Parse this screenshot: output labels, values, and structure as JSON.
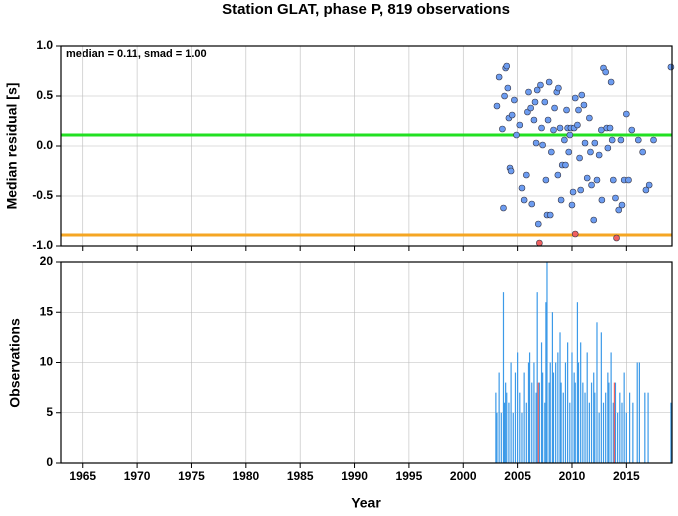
{
  "chart_data": [
    {
      "type": "scatter",
      "title": "Station GLAT, phase P, 819 observations",
      "ylabel": "Median residual [s]",
      "annotation": "median = 0.11, smad = 1.00",
      "xlim": [
        1963,
        2019.2
      ],
      "xticks": [
        1965,
        1970,
        1975,
        1980,
        1985,
        1990,
        1995,
        2000,
        2005,
        2010,
        2015
      ],
      "ylim": [
        -1,
        1
      ],
      "yticks": [
        {
          "value": -1,
          "label": "-1.0"
        },
        -0.5,
        {
          "value": 0,
          "label": "0.0"
        },
        0.5,
        {
          "value": 1,
          "label": "1.0"
        }
      ],
      "grid": true,
      "hlines": [
        {
          "value": 0.11,
          "color": "#22e022"
        },
        {
          "value": -0.89,
          "color": "#f5a623"
        }
      ],
      "series": [
        {
          "color": "#6c9cf0",
          "x": [
            2003.1,
            2003.3,
            2003.6,
            2003.7,
            2003.8,
            2003.9,
            2004.0,
            2004.1,
            2004.2,
            2004.3,
            2004.4,
            2004.5,
            2004.7,
            2004.9,
            2005.2,
            2005.4,
            2005.6,
            2005.8,
            2005.9,
            2006.0,
            2006.2,
            2006.3,
            2006.5,
            2006.6,
            2006.7,
            2006.8,
            2006.9,
            2007.1,
            2007.2,
            2007.3,
            2007.5,
            2007.6,
            2007.7,
            2007.8,
            2007.9,
            2008.0,
            2008.1,
            2008.3,
            2008.4,
            2008.6,
            2008.7,
            2008.75,
            2008.9,
            2009.0,
            2009.1,
            2009.3,
            2009.4,
            2009.5,
            2009.6,
            2009.7,
            2009.8,
            2009.9,
            2010.0,
            2010.1,
            2010.2,
            2010.3,
            2010.5,
            2010.6,
            2010.7,
            2010.8,
            2010.9,
            2011.1,
            2011.2,
            2011.4,
            2011.6,
            2011.7,
            2011.8,
            2012.0,
            2012.1,
            2012.3,
            2012.5,
            2012.7,
            2012.75,
            2012.9,
            2013.1,
            2013.2,
            2013.3,
            2013.5,
            2013.6,
            2013.7,
            2013.8,
            2014.0,
            2014.3,
            2014.5,
            2014.6,
            2014.8,
            2015.0,
            2015.2,
            2015.5,
            2016.1,
            2016.5,
            2016.8,
            2017.1,
            2017.5,
            2019.1
          ],
          "values": [
            0.4,
            0.69,
            0.17,
            -0.62,
            0.5,
            0.78,
            0.8,
            0.58,
            0.28,
            -0.22,
            -0.25,
            0.31,
            0.46,
            0.11,
            0.21,
            -0.42,
            -0.54,
            -0.29,
            0.34,
            0.54,
            0.38,
            -0.58,
            0.26,
            0.44,
            0.03,
            0.56,
            -0.78,
            0.61,
            0.18,
            0.01,
            0.44,
            -0.34,
            -0.69,
            0.26,
            0.64,
            -0.69,
            -0.06,
            0.16,
            0.38,
            0.54,
            -0.29,
            0.58,
            0.18,
            -0.54,
            -0.19,
            0.06,
            -0.19,
            0.36,
            0.18,
            -0.06,
            0.11,
            0.18,
            -0.59,
            -0.46,
            0.18,
            0.48,
            0.21,
            0.36,
            -0.12,
            -0.44,
            0.51,
            0.41,
            0.03,
            -0.32,
            0.28,
            -0.06,
            -0.39,
            -0.74,
            0.03,
            -0.34,
            -0.09,
            0.16,
            -0.54,
            0.78,
            0.74,
            0.18,
            -0.02,
            0.18,
            0.64,
            0.06,
            -0.34,
            -0.52,
            -0.64,
            0.06,
            -0.59,
            -0.34,
            0.32,
            -0.34,
            0.16,
            0.06,
            -0.06,
            -0.44,
            -0.39,
            0.06,
            0.79
          ]
        },
        {
          "color": "#f06060",
          "x": [
            2007.0,
            2010.3,
            2014.1
          ],
          "values": [
            -0.97,
            -0.88,
            -0.92
          ]
        }
      ]
    },
    {
      "type": "bar",
      "ylabel": "Observations",
      "xlabel": "Year",
      "xlim": [
        1963,
        2019.2
      ],
      "xticks": [
        1965,
        1970,
        1975,
        1980,
        1985,
        1990,
        1995,
        2000,
        2005,
        2010,
        2015
      ],
      "ylim": [
        0,
        20
      ],
      "yticks": [
        0,
        5,
        10,
        15,
        20
      ],
      "grid": true,
      "series": [
        {
          "color": "#3c9ae8",
          "x": [
            2003.0,
            2003.1,
            2003.3,
            2003.5,
            2003.7,
            2003.8,
            2003.9,
            2004.0,
            2004.2,
            2004.4,
            2004.6,
            2004.8,
            2005.0,
            2005.2,
            2005.4,
            2005.6,
            2005.8,
            2006.0,
            2006.1,
            2006.3,
            2006.5,
            2006.7,
            2006.8,
            2007.0,
            2007.2,
            2007.3,
            2007.5,
            2007.6,
            2007.7,
            2007.9,
            2008.0,
            2008.2,
            2008.3,
            2008.5,
            2008.7,
            2008.9,
            2009.0,
            2009.2,
            2009.4,
            2009.6,
            2009.8,
            2010.0,
            2010.2,
            2010.3,
            2010.5,
            2010.6,
            2010.8,
            2011.0,
            2011.2,
            2011.4,
            2011.6,
            2011.8,
            2012.0,
            2012.1,
            2012.3,
            2012.5,
            2012.7,
            2012.9,
            2013.1,
            2013.3,
            2013.4,
            2013.6,
            2013.8,
            2014.0,
            2014.2,
            2014.4,
            2014.6,
            2014.8,
            2015.0,
            2015.3,
            2015.6,
            2016.0,
            2016.2,
            2016.7,
            2017.0,
            2019.1
          ],
          "values": [
            7,
            5,
            9,
            5,
            17,
            6,
            8,
            7,
            6,
            10,
            5,
            9,
            11,
            7,
            5,
            9,
            6,
            10,
            11,
            8,
            10,
            7,
            17,
            8,
            12,
            9,
            6,
            16,
            20,
            8,
            10,
            15,
            9,
            10,
            11,
            13,
            8,
            7,
            10,
            12,
            6,
            11,
            9,
            8,
            16,
            10,
            12,
            8,
            7,
            11,
            6,
            8,
            9,
            7,
            14,
            5,
            13,
            6,
            7,
            9,
            8,
            11,
            6,
            8,
            5,
            7,
            6,
            9,
            5,
            7,
            6,
            10,
            10,
            7,
            7,
            6
          ]
        },
        {
          "color": "#f06060",
          "x": [
            2006.9,
            2013.9
          ],
          "values": [
            8,
            8
          ]
        }
      ]
    }
  ]
}
